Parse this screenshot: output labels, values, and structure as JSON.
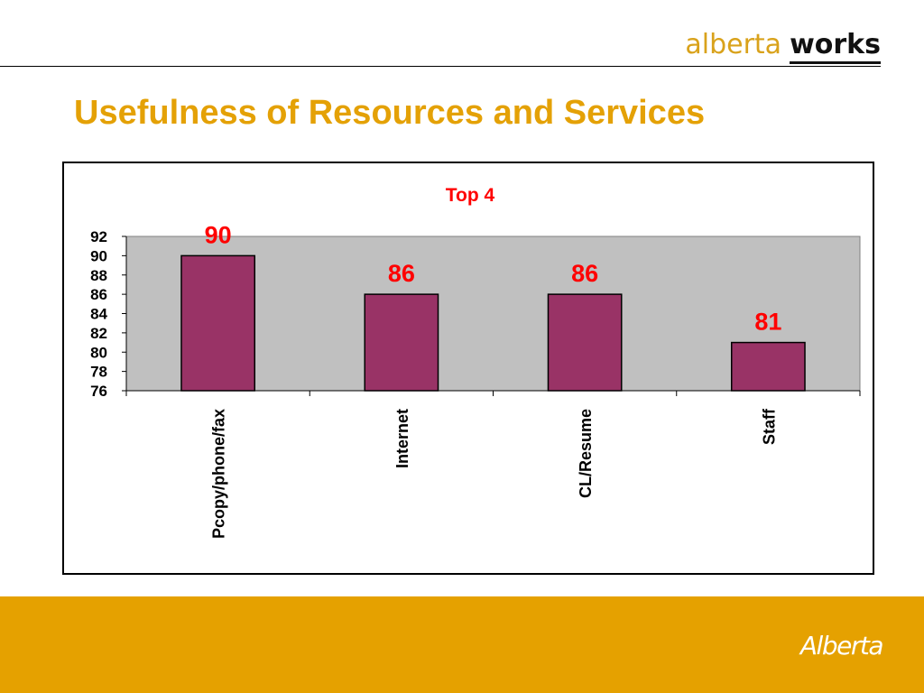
{
  "header": {
    "logo_light": "alberta",
    "logo_bold": "works",
    "title": "Usefulness of Resources and Services"
  },
  "footer": {
    "logo_text": "Alberta"
  },
  "colors": {
    "title": "#e4a106",
    "plot_background": "#c0c0c0",
    "bar_fill": "#993366",
    "data_label": "#ff0000",
    "footer_band": "#e5a100"
  },
  "chart_data": {
    "type": "bar",
    "title": "Top 4",
    "categories": [
      "Pcopy/phone/fax",
      "Internet",
      "CL/Resume",
      "Staff"
    ],
    "values": [
      90,
      86,
      86,
      81
    ],
    "data_labels": [
      "90",
      "86",
      "86",
      "81"
    ],
    "ylim": [
      76,
      92
    ],
    "yticks": [
      76,
      78,
      80,
      82,
      84,
      86,
      88,
      90,
      92
    ],
    "xlabel": "",
    "ylabel": "",
    "grid": false,
    "legend": false
  }
}
